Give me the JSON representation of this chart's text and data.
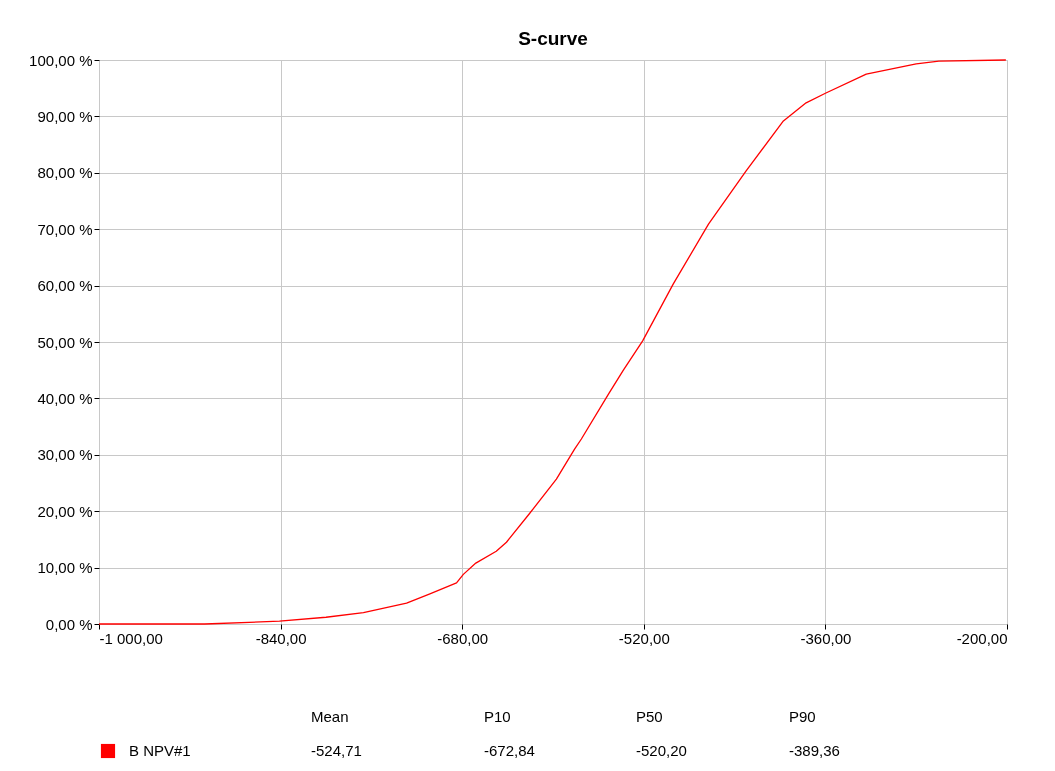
{
  "chart_data": {
    "type": "line",
    "title": "S-curve",
    "x": [
      -1000,
      -907,
      -841,
      -800,
      -767,
      -729,
      -709,
      -685,
      -679,
      -668,
      -650,
      -641,
      -621,
      -597,
      -581,
      -575,
      -551,
      -538,
      -521,
      -494,
      -463,
      -430,
      -397,
      -377,
      -360,
      -324,
      -280,
      -260,
      -201
    ],
    "series": [
      {
        "name": "B NPV#1",
        "color": "#ff0000",
        "values": [
          0,
          0,
          0.5,
          1.2,
          2.0,
          3.7,
          5.3,
          7.3,
          8.8,
          10.8,
          12.9,
          14.5,
          19.5,
          25.7,
          31.0,
          32.8,
          40.8,
          45.0,
          50.2,
          60.3,
          70.9,
          80.3,
          89.2,
          92.4,
          94.1,
          97.5,
          99.3,
          99.8,
          100
        ]
      }
    ],
    "xlim": [
      -1000,
      -200
    ],
    "xticks": [
      {
        "value": -1000,
        "label": "-1 000,00"
      },
      {
        "value": -840,
        "label": "-840,00"
      },
      {
        "value": -680,
        "label": "-680,00"
      },
      {
        "value": -520,
        "label": "-520,00"
      },
      {
        "value": -360,
        "label": "-360,00"
      },
      {
        "value": -200,
        "label": "-200,00"
      }
    ],
    "ylim": [
      0,
      100
    ],
    "yticks": [
      {
        "value": 0,
        "label": "0,00 %"
      },
      {
        "value": 10,
        "label": "10,00 %"
      },
      {
        "value": 20,
        "label": "20,00 %"
      },
      {
        "value": 30,
        "label": "30,00 %"
      },
      {
        "value": 40,
        "label": "40,00 %"
      },
      {
        "value": 50,
        "label": "50,00 %"
      },
      {
        "value": 60,
        "label": "60,00 %"
      },
      {
        "value": 70,
        "label": "70,00 %"
      },
      {
        "value": 80,
        "label": "80,00 %"
      },
      {
        "value": 90,
        "label": "90,00 %"
      },
      {
        "value": 100,
        "label": "100,00 %"
      }
    ],
    "grid": true,
    "legend": "bottom",
    "marker": "none",
    "line_style": "solid",
    "annotations": [
      "Mean",
      "P10",
      "P50",
      "P90",
      "-524,71",
      "-672,84",
      "-520,20",
      "-389,36"
    ]
  }
}
